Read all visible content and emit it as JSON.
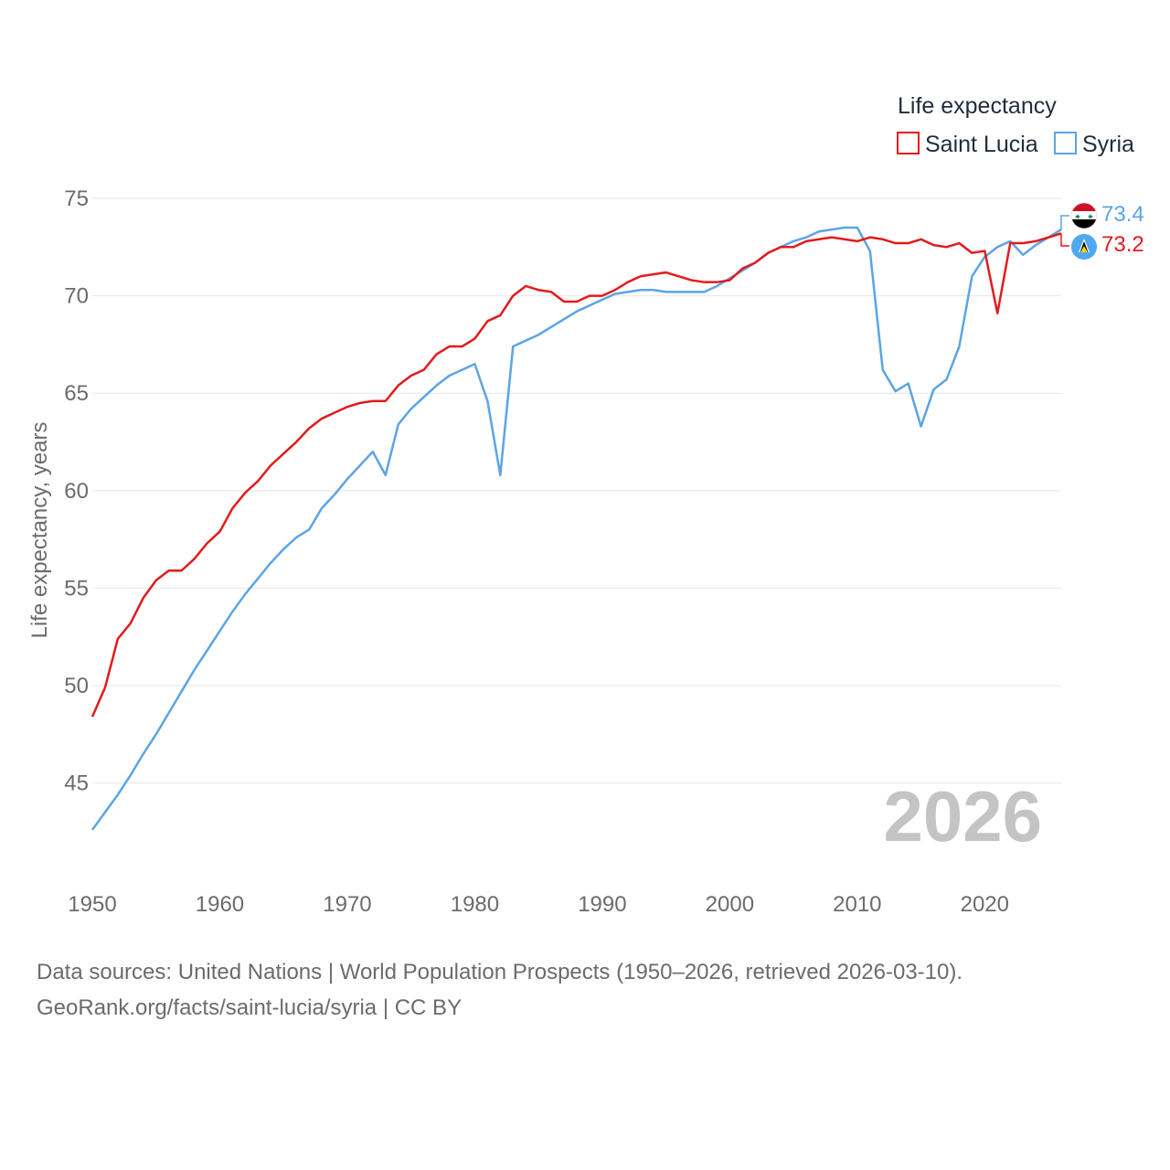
{
  "chart_data": {
    "type": "line",
    "title": "Life expectancy",
    "ylabel": "Life expectancy, years",
    "xlabel": "",
    "xlim": [
      1950,
      2026
    ],
    "ylim": [
      41,
      76
    ],
    "yticks": [
      45,
      50,
      55,
      60,
      65,
      70,
      75
    ],
    "xticks": [
      1950,
      1960,
      1970,
      1980,
      1990,
      2000,
      2010,
      2020
    ],
    "grid": true,
    "legend_position": "top-right",
    "current_year_label": "2026",
    "x": [
      1950,
      1951,
      1952,
      1953,
      1954,
      1955,
      1956,
      1957,
      1958,
      1959,
      1960,
      1961,
      1962,
      1963,
      1964,
      1965,
      1966,
      1967,
      1968,
      1969,
      1970,
      1971,
      1972,
      1973,
      1974,
      1975,
      1976,
      1977,
      1978,
      1979,
      1980,
      1981,
      1982,
      1983,
      1984,
      1985,
      1986,
      1987,
      1988,
      1989,
      1990,
      1991,
      1992,
      1993,
      1994,
      1995,
      1996,
      1997,
      1998,
      1999,
      2000,
      2001,
      2002,
      2003,
      2004,
      2005,
      2006,
      2007,
      2008,
      2009,
      2010,
      2011,
      2012,
      2013,
      2014,
      2015,
      2016,
      2017,
      2018,
      2019,
      2020,
      2021,
      2022,
      2023,
      2024,
      2025,
      2026
    ],
    "series": [
      {
        "name": "Saint Lucia",
        "color": "#e31a1c",
        "end_label": "73.2",
        "flag": "saint-lucia-flag-icon",
        "values": [
          48.4,
          49.9,
          52.4,
          53.2,
          54.5,
          55.4,
          55.9,
          55.9,
          56.5,
          57.3,
          57.9,
          59.1,
          59.9,
          60.5,
          61.3,
          61.9,
          62.5,
          63.2,
          63.7,
          64.0,
          64.3,
          64.5,
          64.6,
          64.6,
          65.4,
          65.9,
          66.2,
          67.0,
          67.4,
          67.4,
          67.8,
          68.7,
          69.0,
          70.0,
          70.5,
          70.3,
          70.2,
          69.7,
          69.7,
          70.0,
          70.0,
          70.3,
          70.7,
          71.0,
          71.1,
          71.2,
          71.0,
          70.8,
          70.7,
          70.7,
          70.8,
          71.4,
          71.7,
          72.2,
          72.5,
          72.5,
          72.8,
          72.9,
          73.0,
          72.9,
          72.8,
          73.0,
          72.9,
          72.7,
          72.7,
          72.9,
          72.6,
          72.5,
          72.7,
          72.2,
          72.3,
          69.1,
          72.7,
          72.7,
          72.8,
          73.0,
          73.2
        ]
      },
      {
        "name": "Syria",
        "color": "#5ba4e6",
        "end_label": "73.4",
        "flag": "syria-flag-icon",
        "values": [
          42.6,
          43.5,
          44.4,
          45.4,
          46.5,
          47.5,
          48.6,
          49.7,
          50.8,
          51.8,
          52.8,
          53.8,
          54.7,
          55.5,
          56.3,
          57.0,
          57.6,
          58.0,
          59.1,
          59.8,
          60.6,
          61.3,
          62.0,
          60.8,
          63.4,
          64.2,
          64.8,
          65.4,
          65.9,
          66.2,
          66.5,
          64.6,
          60.8,
          67.4,
          67.7,
          68.0,
          68.4,
          68.8,
          69.2,
          69.5,
          69.8,
          70.1,
          70.2,
          70.3,
          70.3,
          70.2,
          70.2,
          70.2,
          70.2,
          70.5,
          70.9,
          71.3,
          71.7,
          72.2,
          72.5,
          72.8,
          73.0,
          73.3,
          73.4,
          73.5,
          73.5,
          72.3,
          66.2,
          65.1,
          65.5,
          63.3,
          65.2,
          65.7,
          67.4,
          71.0,
          72.0,
          72.5,
          72.8,
          72.1,
          72.6,
          73.0,
          73.4
        ]
      }
    ]
  },
  "source": {
    "line1": "Data sources: United Nations | World Population Prospects (1950–2026, retrieved 2026-03-10).",
    "line2": "GeoRank.org/facts/saint-lucia/syria | CC BY"
  }
}
